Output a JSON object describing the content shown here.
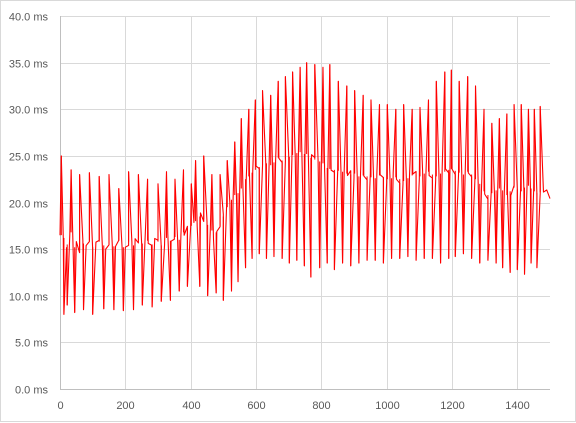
{
  "colors": {
    "series": "#ff0000",
    "grid": "#d9d9d9",
    "axis": "#bfbfbf",
    "text": "#595959"
  },
  "chart_data": {
    "type": "line",
    "title": "",
    "xlabel": "",
    "ylabel": "",
    "xlim": [
      0,
      1500
    ],
    "ylim": [
      0,
      40
    ],
    "grid": true,
    "legend": "none",
    "x_ticks": [
      0,
      200,
      400,
      600,
      800,
      1000,
      1200,
      1400
    ],
    "x_tick_labels": [
      "0",
      "200",
      "400",
      "600",
      "800",
      "1000",
      "1200",
      "1400"
    ],
    "y_ticks": [
      0,
      5,
      10,
      15,
      20,
      25,
      30,
      35,
      40
    ],
    "y_tick_labels": [
      "0.0 ms",
      "5.0 ms",
      "10.0 ms",
      "15.0 ms",
      "20.0 ms",
      "25.0 ms",
      "30.0 ms",
      "35.0 ms",
      "40.0 ms"
    ],
    "series": [
      {
        "color": "#ff0000",
        "sampling": "approximate baseline trend with spikes; recorded trace has ~1500 samples",
        "x": [
          0,
          10,
          20,
          30,
          40,
          50,
          60,
          70,
          80,
          90,
          100,
          110,
          120,
          130,
          140,
          150,
          160,
          170,
          180,
          190,
          200,
          210,
          220,
          230,
          240,
          250,
          260,
          270,
          280,
          290,
          300,
          310,
          320,
          330,
          340,
          350,
          360,
          370,
          380,
          390,
          400,
          410,
          420,
          430,
          440,
          450,
          460,
          470,
          480,
          490,
          500,
          510,
          520,
          530,
          540,
          550,
          560,
          570,
          580,
          590,
          600,
          610,
          620,
          630,
          640,
          650,
          660,
          670,
          680,
          690,
          700,
          710,
          720,
          730,
          740,
          750,
          760,
          770,
          780,
          790,
          800,
          810,
          820,
          830,
          840,
          850,
          860,
          870,
          880,
          890,
          900,
          910,
          920,
          930,
          940,
          950,
          960,
          970,
          980,
          990,
          1000,
          1010,
          1020,
          1030,
          1040,
          1050,
          1060,
          1070,
          1080,
          1090,
          1100,
          1110,
          1120,
          1130,
          1140,
          1150,
          1160,
          1170,
          1180,
          1190,
          1200,
          1210,
          1220,
          1230,
          1240,
          1250,
          1260,
          1270,
          1280,
          1290,
          1300,
          1310,
          1320,
          1330,
          1340,
          1350,
          1360,
          1370,
          1380,
          1390,
          1400,
          1410,
          1420,
          1430,
          1440,
          1450,
          1460,
          1470,
          1480,
          1490,
          1500
        ],
        "y": [
          16.5,
          16.2,
          15.5,
          16.8,
          15.2,
          15.8,
          15.0,
          15.6,
          15.3,
          15.9,
          15.2,
          15.5,
          15.8,
          15.4,
          15.0,
          15.7,
          15.3,
          15.6,
          15.9,
          15.2,
          15.5,
          15.8,
          15.4,
          15.7,
          16.0,
          15.6,
          15.3,
          15.9,
          15.5,
          16.1,
          15.8,
          15.4,
          15.7,
          16.2,
          15.9,
          16.3,
          16.0,
          16.5,
          16.8,
          17.2,
          17.5,
          18.0,
          17.8,
          18.5,
          18.2,
          17.6,
          17.0,
          16.2,
          16.8,
          17.5,
          18.5,
          19.5,
          20.3,
          20.8,
          21.0,
          21.5,
          22.0,
          22.5,
          22.8,
          23.2,
          23.5,
          23.8,
          24.0,
          24.2,
          24.0,
          24.3,
          24.5,
          24.8,
          24.5,
          24.7,
          24.9,
          25.1,
          25.3,
          25.4,
          25.6,
          25.2,
          25.0,
          24.8,
          24.6,
          24.4,
          24.2,
          23.9,
          23.7,
          23.6,
          23.5,
          23.4,
          23.3,
          23.2,
          23.1,
          23.0,
          23.1,
          22.8,
          23.0,
          22.9,
          22.8,
          22.7,
          22.6,
          22.8,
          22.9,
          22.7,
          22.5,
          22.6,
          22.8,
          22.7,
          22.5,
          22.3,
          22.6,
          22.8,
          22.9,
          23.0,
          22.8,
          23.1,
          23.2,
          23.3,
          23.0,
          22.8,
          23.1,
          23.4,
          23.3,
          23.5,
          23.6,
          23.4,
          23.2,
          23.0,
          23.1,
          23.3,
          23.0,
          22.5,
          22.0,
          21.5,
          21.2,
          20.8,
          21.0,
          21.3,
          21.5,
          21.3,
          21.0,
          20.8,
          21.2,
          21.6,
          21.4,
          21.2,
          21.6,
          21.8,
          21.5,
          21.2,
          21.0,
          21.1,
          21.5,
          21.0,
          20.8
        ],
        "spikes": [
          {
            "x": 4,
            "y": 25.0
          },
          {
            "x": 12,
            "y": 8.0
          },
          {
            "x": 22,
            "y": 9.0
          },
          {
            "x": 34,
            "y": 23.5
          },
          {
            "x": 45,
            "y": 8.2
          },
          {
            "x": 60,
            "y": 23.0
          },
          {
            "x": 72,
            "y": 8.5
          },
          {
            "x": 90,
            "y": 23.2
          },
          {
            "x": 100,
            "y": 8.0
          },
          {
            "x": 120,
            "y": 22.8
          },
          {
            "x": 134,
            "y": 8.6
          },
          {
            "x": 150,
            "y": 23.0
          },
          {
            "x": 165,
            "y": 8.5
          },
          {
            "x": 180,
            "y": 21.5
          },
          {
            "x": 194,
            "y": 8.4
          },
          {
            "x": 210,
            "y": 23.3
          },
          {
            "x": 225,
            "y": 8.5
          },
          {
            "x": 240,
            "y": 23.0
          },
          {
            "x": 252,
            "y": 9.0
          },
          {
            "x": 268,
            "y": 22.5
          },
          {
            "x": 282,
            "y": 8.8
          },
          {
            "x": 300,
            "y": 22.0
          },
          {
            "x": 310,
            "y": 9.4
          },
          {
            "x": 326,
            "y": 23.3
          },
          {
            "x": 338,
            "y": 9.5
          },
          {
            "x": 352,
            "y": 22.5
          },
          {
            "x": 365,
            "y": 10.5
          },
          {
            "x": 378,
            "y": 23.5
          },
          {
            "x": 390,
            "y": 11.0
          },
          {
            "x": 402,
            "y": 22.0
          },
          {
            "x": 415,
            "y": 24.5
          },
          {
            "x": 428,
            "y": 11.0
          },
          {
            "x": 440,
            "y": 25.0
          },
          {
            "x": 452,
            "y": 10.0
          },
          {
            "x": 465,
            "y": 23.0
          },
          {
            "x": 478,
            "y": 10.3
          },
          {
            "x": 490,
            "y": 23.0
          },
          {
            "x": 500,
            "y": 9.5
          },
          {
            "x": 512,
            "y": 24.5
          },
          {
            "x": 525,
            "y": 10.5
          },
          {
            "x": 535,
            "y": 26.5
          },
          {
            "x": 545,
            "y": 11.5
          },
          {
            "x": 555,
            "y": 29.0
          },
          {
            "x": 568,
            "y": 13.0
          },
          {
            "x": 578,
            "y": 30.0
          },
          {
            "x": 588,
            "y": 14.0
          },
          {
            "x": 598,
            "y": 31.0
          },
          {
            "x": 610,
            "y": 14.5
          },
          {
            "x": 620,
            "y": 32.0
          },
          {
            "x": 632,
            "y": 14.0
          },
          {
            "x": 645,
            "y": 31.5
          },
          {
            "x": 655,
            "y": 14.2
          },
          {
            "x": 668,
            "y": 33.0
          },
          {
            "x": 680,
            "y": 14.0
          },
          {
            "x": 690,
            "y": 33.5
          },
          {
            "x": 702,
            "y": 13.5
          },
          {
            "x": 712,
            "y": 34.0
          },
          {
            "x": 725,
            "y": 13.8
          },
          {
            "x": 735,
            "y": 34.5
          },
          {
            "x": 748,
            "y": 13.2
          },
          {
            "x": 755,
            "y": 35.0
          },
          {
            "x": 768,
            "y": 12.0
          },
          {
            "x": 780,
            "y": 34.8
          },
          {
            "x": 795,
            "y": 13.0
          },
          {
            "x": 805,
            "y": 34.5
          },
          {
            "x": 818,
            "y": 13.5
          },
          {
            "x": 826,
            "y": 34.8
          },
          {
            "x": 840,
            "y": 12.8
          },
          {
            "x": 852,
            "y": 33.0
          },
          {
            "x": 865,
            "y": 13.5
          },
          {
            "x": 878,
            "y": 32.5
          },
          {
            "x": 890,
            "y": 13.2
          },
          {
            "x": 902,
            "y": 32.0
          },
          {
            "x": 915,
            "y": 13.5
          },
          {
            "x": 928,
            "y": 31.5
          },
          {
            "x": 940,
            "y": 13.8
          },
          {
            "x": 952,
            "y": 31.0
          },
          {
            "x": 965,
            "y": 13.8
          },
          {
            "x": 978,
            "y": 30.5
          },
          {
            "x": 990,
            "y": 13.5
          },
          {
            "x": 1002,
            "y": 30.5
          },
          {
            "x": 1015,
            "y": 14.0
          },
          {
            "x": 1028,
            "y": 30.0
          },
          {
            "x": 1040,
            "y": 14.0
          },
          {
            "x": 1052,
            "y": 30.5
          },
          {
            "x": 1065,
            "y": 14.2
          },
          {
            "x": 1078,
            "y": 30.0
          },
          {
            "x": 1090,
            "y": 13.8
          },
          {
            "x": 1102,
            "y": 30.2
          },
          {
            "x": 1115,
            "y": 14.0
          },
          {
            "x": 1128,
            "y": 31.0
          },
          {
            "x": 1140,
            "y": 14.0
          },
          {
            "x": 1152,
            "y": 33.0
          },
          {
            "x": 1165,
            "y": 13.5
          },
          {
            "x": 1178,
            "y": 34.0
          },
          {
            "x": 1190,
            "y": 14.0
          },
          {
            "x": 1198,
            "y": 34.2
          },
          {
            "x": 1210,
            "y": 14.2
          },
          {
            "x": 1222,
            "y": 33.0
          },
          {
            "x": 1235,
            "y": 14.5
          },
          {
            "x": 1248,
            "y": 33.5
          },
          {
            "x": 1260,
            "y": 14.0
          },
          {
            "x": 1272,
            "y": 32.5
          },
          {
            "x": 1285,
            "y": 13.5
          },
          {
            "x": 1298,
            "y": 30.0
          },
          {
            "x": 1310,
            "y": 13.8
          },
          {
            "x": 1322,
            "y": 28.5
          },
          {
            "x": 1335,
            "y": 13.5
          },
          {
            "x": 1345,
            "y": 29.0
          },
          {
            "x": 1355,
            "y": 13.0
          },
          {
            "x": 1368,
            "y": 29.5
          },
          {
            "x": 1378,
            "y": 12.5
          },
          {
            "x": 1390,
            "y": 30.5
          },
          {
            "x": 1400,
            "y": 12.8
          },
          {
            "x": 1412,
            "y": 30.5
          },
          {
            "x": 1422,
            "y": 12.3
          },
          {
            "x": 1434,
            "y": 30.0
          },
          {
            "x": 1442,
            "y": 13.5
          },
          {
            "x": 1452,
            "y": 30.0
          },
          {
            "x": 1460,
            "y": 13.0
          },
          {
            "x": 1470,
            "y": 30.3
          }
        ]
      }
    ]
  }
}
